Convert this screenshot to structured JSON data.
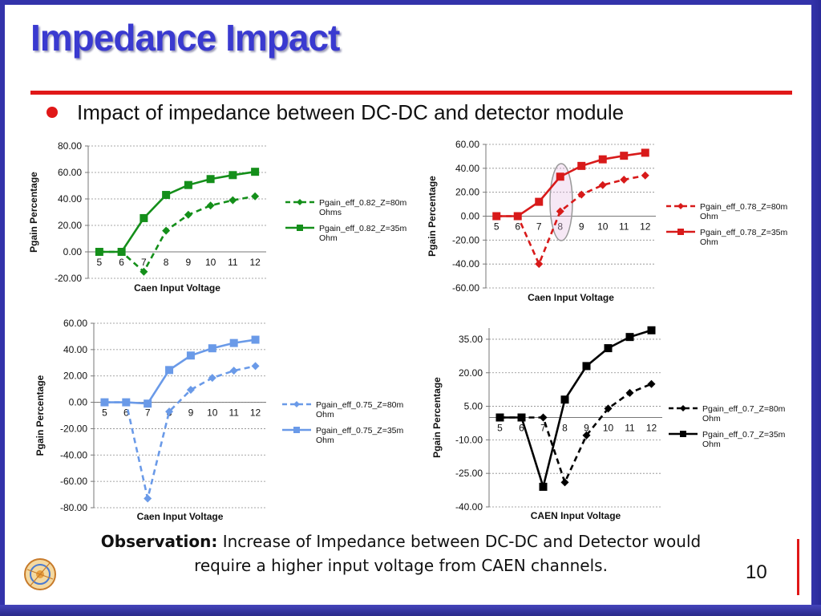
{
  "slide": {
    "title": "Impedance Impact",
    "bullet": "Impact of impedance between DC-DC and detector module",
    "observation_label": "Observation:",
    "observation_line1": "Increase of Impedance between DC-DC and Detector would",
    "observation_line2": "require a higher input voltage from CAEN channels.",
    "page_number": "10",
    "logo_text": "CMS"
  },
  "chart_data": [
    {
      "type": "line",
      "ylabel": "Pgain Percentage",
      "xlabel": "Caen Input Voltage",
      "color": "#148f1a",
      "x": [
        "5",
        "6",
        "7",
        "8",
        "9",
        "10",
        "11",
        "12"
      ],
      "ylim": [
        -20,
        80
      ],
      "ytick_labels": [
        "80.00",
        "60.00",
        "40.00",
        "20.00",
        "0.00",
        "-20.00"
      ],
      "series": [
        {
          "name": "Pgain_eff_0.82_Z=80m Ohms",
          "name_lines": [
            "Pgain_eff_0.82_Z=80m",
            "Ohms"
          ],
          "style": "dashed",
          "marker": "diamond",
          "values": [
            0,
            0,
            -15,
            16,
            28,
            35,
            39,
            42
          ]
        },
        {
          "name": "Pgain_eff_0.82_Z=35m Ohm",
          "name_lines": [
            "Pgain_eff_0.82_Z=35m",
            "Ohm"
          ],
          "style": "solid",
          "marker": "square",
          "values": [
            0,
            0,
            25.5,
            43,
            50.5,
            55,
            58,
            60.5
          ]
        }
      ]
    },
    {
      "type": "line",
      "ylabel": "Pgain Percentage",
      "xlabel": "Caen Input Voltage",
      "color": "#d81a1a",
      "x": [
        "5",
        "6",
        "7",
        "8",
        "9",
        "10",
        "11",
        "12"
      ],
      "ylim": [
        -60,
        60
      ],
      "ytick_labels": [
        "60.00",
        "40.00",
        "20.00",
        "0.00",
        "-20.00",
        "-40.00",
        "-60.00"
      ],
      "annotation": "highlight-ellipse-at-8V",
      "series": [
        {
          "name": "Pgain_eff_0.78_Z=80m Ohm",
          "name_lines": [
            "Pgain_eff_0.78_Z=80m",
            "Ohm"
          ],
          "style": "dashed",
          "marker": "diamond",
          "values": [
            0,
            0,
            -40,
            4,
            18,
            26,
            30.5,
            34
          ]
        },
        {
          "name": "Pgain_eff_0.78_Z=35m Ohm",
          "name_lines": [
            "Pgain_eff_0.78_Z=35m",
            "Ohm"
          ],
          "style": "solid",
          "marker": "square",
          "values": [
            0,
            0,
            12,
            33,
            42,
            47.5,
            50.5,
            53
          ]
        }
      ]
    },
    {
      "type": "line",
      "ylabel": "Pgain Percentage",
      "xlabel": "Caen Input Voltage",
      "color": "#6a9ae8",
      "x": [
        "5",
        "6",
        "7",
        "8",
        "9",
        "10",
        "11",
        "12"
      ],
      "ylim": [
        -80,
        60
      ],
      "ytick_labels": [
        "60.00",
        "40.00",
        "20.00",
        "0.00",
        "-20.00",
        "-40.00",
        "-60.00",
        "-80.00"
      ],
      "series": [
        {
          "name": "Pgain_eff_0.75_Z=80m Ohm",
          "name_lines": [
            "Pgain_eff_0.75_Z=80m",
            "Ohm"
          ],
          "style": "dashed",
          "marker": "diamond",
          "values": [
            0,
            0,
            -73,
            -7,
            9.5,
            18.5,
            24,
            27.5
          ]
        },
        {
          "name": "Pgain_eff_0.75_Z=35m Ohm",
          "name_lines": [
            "Pgain_eff_0.75_Z=35m",
            "Ohm"
          ],
          "style": "solid",
          "marker": "square",
          "values": [
            0,
            0,
            -1,
            24.5,
            35.5,
            41,
            45,
            47.5
          ]
        }
      ]
    },
    {
      "type": "line",
      "ylabel": "Pgain Percentage",
      "xlabel": "CAEN Input Voltage",
      "color": "#000000",
      "x": [
        "5",
        "6",
        "7",
        "8",
        "9",
        "10",
        "11",
        "12"
      ],
      "ylim": [
        -40,
        40
      ],
      "ytick_labels": [
        "35.00",
        "20.00",
        "5.00",
        "-10.00",
        "-25.00",
        "-40.00"
      ],
      "ytick_values": [
        35,
        20,
        5,
        -10,
        -25,
        -40
      ],
      "series": [
        {
          "name": "Pgain_eff_0.7_Z=80m Ohm",
          "name_lines": [
            "Pgain_eff_0.7_Z=80m",
            "Ohm"
          ],
          "style": "dashed",
          "marker": "diamond",
          "values": [
            0,
            0,
            0,
            -29,
            -8,
            4,
            11,
            15
          ]
        },
        {
          "name": "Pgain_eff_0.7_Z=35m Ohm",
          "name_lines": [
            "Pgain_eff_0.7_Z=35m",
            "Ohm"
          ],
          "style": "solid",
          "marker": "square",
          "values": [
            0,
            0,
            -31,
            8,
            23,
            31,
            36,
            39
          ]
        }
      ]
    }
  ]
}
